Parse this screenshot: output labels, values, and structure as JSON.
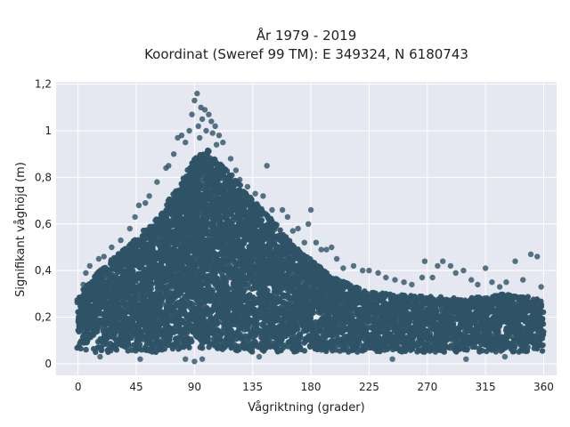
{
  "chart_data": {
    "type": "scatter",
    "title_line1": "År 1979 - 2019",
    "title_line2": "Koordinat (Sweref 99 TM): E 349324, N 6180743",
    "xlabel": "Vågriktning (grader)",
    "ylabel": "Signifikant våghöjd (m)",
    "xlim": [
      -17,
      370
    ],
    "ylim": [
      -0.05,
      1.21
    ],
    "xticks": [
      0,
      45,
      90,
      135,
      180,
      225,
      270,
      315,
      360
    ],
    "xtick_labels": [
      "0",
      "45",
      "90",
      "135",
      "180",
      "225",
      "270",
      "315",
      "360"
    ],
    "yticks": [
      0,
      0.2,
      0.4,
      0.6,
      0.8,
      1,
      1.2
    ],
    "ytick_labels": [
      "0",
      "0,2",
      "0,4",
      "0,6",
      "0,8",
      "1",
      "1,2"
    ],
    "grid": true,
    "legend": "none",
    "marker_color": "#2e5366",
    "plot_background": "#e5e8f0",
    "envelope": {
      "direction": [
        0,
        10,
        20,
        30,
        45,
        60,
        75,
        90,
        100,
        110,
        120,
        135,
        150,
        165,
        180,
        195,
        210,
        225,
        240,
        270,
        300,
        330,
        360
      ],
      "upper_hs": [
        0.28,
        0.36,
        0.42,
        0.47,
        0.54,
        0.62,
        0.74,
        0.88,
        0.92,
        0.86,
        0.8,
        0.7,
        0.62,
        0.52,
        0.45,
        0.38,
        0.34,
        0.31,
        0.3,
        0.29,
        0.28,
        0.3,
        0.28
      ],
      "lower_hs": [
        0.06,
        0.05,
        0.05,
        0.05,
        0.05,
        0.05,
        0.06,
        0.06,
        0.06,
        0.06,
        0.05,
        0.05,
        0.05,
        0.05,
        0.05,
        0.05,
        0.05,
        0.05,
        0.05,
        0.05,
        0.05,
        0.05,
        0.05
      ]
    },
    "outliers": [
      {
        "x": 92,
        "y": 1.16
      },
      {
        "x": 90,
        "y": 1.13
      },
      {
        "x": 95,
        "y": 1.1
      },
      {
        "x": 88,
        "y": 1.07
      },
      {
        "x": 98,
        "y": 1.09
      },
      {
        "x": 101,
        "y": 1.07
      },
      {
        "x": 96,
        "y": 1.05
      },
      {
        "x": 103,
        "y": 1.04
      },
      {
        "x": 106,
        "y": 1.02
      },
      {
        "x": 93,
        "y": 1.02
      },
      {
        "x": 99,
        "y": 1.0
      },
      {
        "x": 104,
        "y": 0.99
      },
      {
        "x": 86,
        "y": 1.0
      },
      {
        "x": 80,
        "y": 0.98
      },
      {
        "x": 77,
        "y": 0.97
      },
      {
        "x": 109,
        "y": 0.98
      },
      {
        "x": 83,
        "y": 0.95
      },
      {
        "x": 112,
        "y": 0.95
      },
      {
        "x": 94,
        "y": 0.97
      },
      {
        "x": 107,
        "y": 0.94
      },
      {
        "x": 74,
        "y": 0.9
      },
      {
        "x": 70,
        "y": 0.85
      },
      {
        "x": 68,
        "y": 0.84
      },
      {
        "x": 61,
        "y": 0.78
      },
      {
        "x": 55,
        "y": 0.72
      },
      {
        "x": 47,
        "y": 0.68
      },
      {
        "x": 52,
        "y": 0.69
      },
      {
        "x": 44,
        "y": 0.63
      },
      {
        "x": 40,
        "y": 0.58
      },
      {
        "x": 33,
        "y": 0.53
      },
      {
        "x": 26,
        "y": 0.5
      },
      {
        "x": 20,
        "y": 0.46
      },
      {
        "x": 16,
        "y": 0.45
      },
      {
        "x": 9,
        "y": 0.42
      },
      {
        "x": 6,
        "y": 0.39
      },
      {
        "x": 4,
        "y": 0.34
      },
      {
        "x": 118,
        "y": 0.88
      },
      {
        "x": 122,
        "y": 0.83
      },
      {
        "x": 125,
        "y": 0.79
      },
      {
        "x": 131,
        "y": 0.76
      },
      {
        "x": 137,
        "y": 0.73
      },
      {
        "x": 143,
        "y": 0.72
      },
      {
        "x": 146,
        "y": 0.85
      },
      {
        "x": 150,
        "y": 0.66
      },
      {
        "x": 158,
        "y": 0.66
      },
      {
        "x": 162,
        "y": 0.63
      },
      {
        "x": 166,
        "y": 0.57
      },
      {
        "x": 170,
        "y": 0.58
      },
      {
        "x": 178,
        "y": 0.6
      },
      {
        "x": 180,
        "y": 0.66
      },
      {
        "x": 175,
        "y": 0.52
      },
      {
        "x": 184,
        "y": 0.52
      },
      {
        "x": 188,
        "y": 0.49
      },
      {
        "x": 192,
        "y": 0.49
      },
      {
        "x": 196,
        "y": 0.5
      },
      {
        "x": 200,
        "y": 0.45
      },
      {
        "x": 205,
        "y": 0.41
      },
      {
        "x": 213,
        "y": 0.42
      },
      {
        "x": 220,
        "y": 0.4
      },
      {
        "x": 225,
        "y": 0.4
      },
      {
        "x": 232,
        "y": 0.39
      },
      {
        "x": 238,
        "y": 0.37
      },
      {
        "x": 245,
        "y": 0.36
      },
      {
        "x": 252,
        "y": 0.35
      },
      {
        "x": 258,
        "y": 0.34
      },
      {
        "x": 266,
        "y": 0.37
      },
      {
        "x": 268,
        "y": 0.44
      },
      {
        "x": 274,
        "y": 0.37
      },
      {
        "x": 278,
        "y": 0.42
      },
      {
        "x": 282,
        "y": 0.44
      },
      {
        "x": 288,
        "y": 0.42
      },
      {
        "x": 292,
        "y": 0.39
      },
      {
        "x": 298,
        "y": 0.4
      },
      {
        "x": 304,
        "y": 0.36
      },
      {
        "x": 309,
        "y": 0.34
      },
      {
        "x": 315,
        "y": 0.41
      },
      {
        "x": 320,
        "y": 0.35
      },
      {
        "x": 326,
        "y": 0.33
      },
      {
        "x": 331,
        "y": 0.35
      },
      {
        "x": 338,
        "y": 0.44
      },
      {
        "x": 344,
        "y": 0.36
      },
      {
        "x": 350,
        "y": 0.47
      },
      {
        "x": 355,
        "y": 0.46
      },
      {
        "x": 358,
        "y": 0.33
      },
      {
        "x": 17,
        "y": 0.03
      },
      {
        "x": 48,
        "y": 0.02
      },
      {
        "x": 83,
        "y": 0.02
      },
      {
        "x": 90,
        "y": 0.01
      },
      {
        "x": 96,
        "y": 0.02
      },
      {
        "x": 140,
        "y": 0.03
      },
      {
        "x": 243,
        "y": 0.02
      },
      {
        "x": 300,
        "y": 0.02
      },
      {
        "x": 330,
        "y": 0.03
      }
    ]
  }
}
